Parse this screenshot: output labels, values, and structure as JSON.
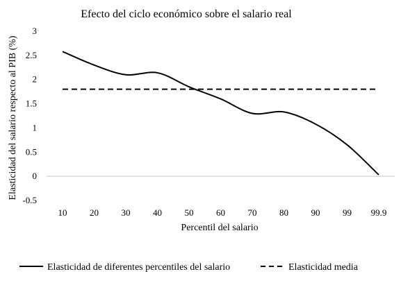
{
  "chart_data": {
    "type": "line",
    "title": "Efecto del ciclo económico sobre el salario real",
    "xlabel": "Percentil del salario",
    "ylabel": "Elasticidad del salario respecto al PIB (%)",
    "categories": [
      "10",
      "20",
      "30",
      "40",
      "50",
      "60",
      "70",
      "80",
      "90",
      "99",
      "99.9"
    ],
    "y_ticks": [
      "-0.5",
      "0",
      "0.5",
      "1",
      "1.5",
      "2",
      "2.5",
      "3"
    ],
    "ylim": [
      -0.5,
      3
    ],
    "grid": false,
    "legend_position": "bottom",
    "series": [
      {
        "name": "Elasticidad de diferentes percentiles del salario",
        "style": "solid",
        "values": [
          2.58,
          2.3,
          2.1,
          2.14,
          1.85,
          1.6,
          1.3,
          1.33,
          1.08,
          0.65,
          0.03
        ]
      },
      {
        "name": "Elasticidad media",
        "style": "dashed",
        "values": [
          1.8,
          1.8,
          1.8,
          1.8,
          1.8,
          1.8,
          1.8,
          1.8,
          1.8,
          1.8,
          1.8
        ]
      }
    ],
    "colors": {
      "line": "#000000",
      "axis": "#c8c8c8"
    }
  }
}
